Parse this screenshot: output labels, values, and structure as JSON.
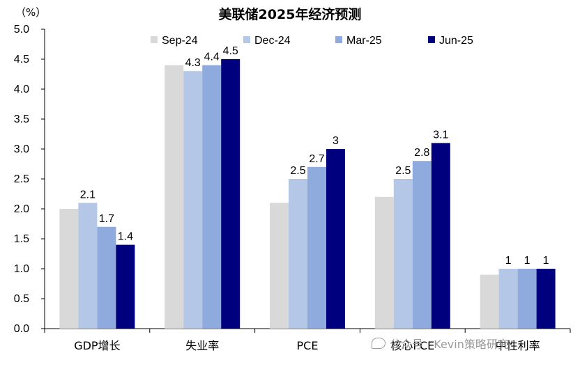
{
  "chart_data": {
    "type": "bar",
    "title": "美联储2025年经济预测",
    "unit_label": "（%）",
    "categories": [
      "GDP增长",
      "失业率",
      "PCE",
      "核心PCE",
      "中性利率"
    ],
    "series": [
      {
        "name": "Sep-24",
        "color": "#d9d9d9",
        "values": [
          2.0,
          4.4,
          2.1,
          2.2,
          0.9
        ]
      },
      {
        "name": "Dec-24",
        "color": "#b4c7e7",
        "values": [
          2.1,
          4.3,
          2.5,
          2.5,
          1.0
        ]
      },
      {
        "name": "Mar-25",
        "color": "#8faadc",
        "values": [
          1.7,
          4.4,
          2.7,
          2.8,
          1.0
        ]
      },
      {
        "name": "Jun-25",
        "color": "#00007f",
        "values": [
          1.4,
          4.5,
          3.0,
          3.1,
          1.0
        ]
      }
    ],
    "data_labels": [
      [
        null,
        "2.1",
        "1.7",
        "1.4"
      ],
      [
        null,
        "4.3",
        "4.4",
        "4.5"
      ],
      [
        null,
        "2.5",
        "2.7",
        "3"
      ],
      [
        null,
        "2.5",
        "2.8",
        "3.1"
      ],
      [
        null,
        "1",
        "1",
        "1"
      ]
    ],
    "ylim": [
      0,
      5.0
    ],
    "yticks": [
      "0.0",
      "0.5",
      "1.0",
      "1.5",
      "2.0",
      "2.5",
      "3.0",
      "3.5",
      "4.0",
      "4.5",
      "5.0"
    ],
    "grid": false,
    "legend_position": "top"
  },
  "watermark": {
    "icon": "wechat-icon",
    "text": "公众号 · Kevin策略研究"
  }
}
